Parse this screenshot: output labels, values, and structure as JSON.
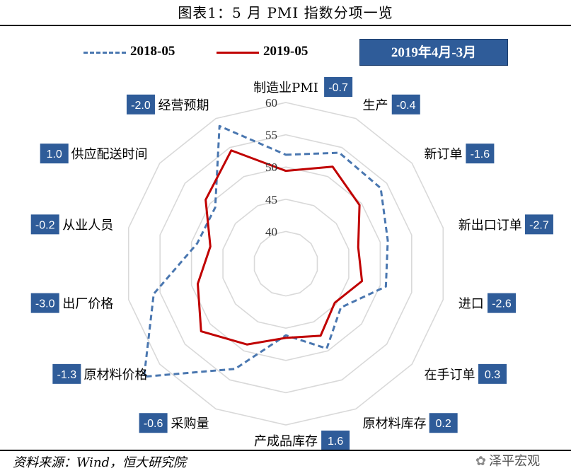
{
  "header": {
    "title": "图表1：5 月 PMI 指数分项一览"
  },
  "legend": {
    "items": [
      "2018-05",
      "2019-05"
    ]
  },
  "period_label": "2019年4月-3月",
  "footer": {
    "source": "资料来源：Wind，恒大研究院",
    "watermark": "泽平宏观"
  },
  "colors": {
    "series_2018": "#4a77b0",
    "series_2019": "#c00000",
    "badge": "#2f5c99",
    "grid": "#d9d9d9"
  },
  "chart_data": {
    "type": "radar",
    "title": "",
    "r_ticks": [
      40,
      45,
      50,
      55,
      60
    ],
    "r_range": [
      35,
      60
    ],
    "categories": [
      "制造业PMI",
      "生产",
      "新订单",
      "新出口订单",
      "进口",
      "在手订单",
      "原材料库存",
      "产成品库存",
      "采购量",
      "原材料价格",
      "出厂价格",
      "从业人员",
      "供应配送时间",
      "经营预期"
    ],
    "badges": [
      "-0.7",
      "-0.4",
      "-1.6",
      "-2.7",
      "-2.6",
      "0.3",
      "0.2",
      "1.6",
      "-0.6",
      "-1.3",
      "-3.0",
      "-0.2",
      "1.0",
      "-2.0"
    ],
    "series": [
      {
        "name": "2018-05",
        "style": "dashed",
        "values": [
          51.9,
          54.1,
          53.8,
          51.2,
          50.9,
          45.9,
          49.6,
          46.1,
          53.1,
          63.1,
          56.0,
          49.1,
          49.0,
          58.7
        ]
      },
      {
        "name": "2019-05",
        "style": "solid",
        "values": [
          49.4,
          51.7,
          49.6,
          46.5,
          47.1,
          44.7,
          47.4,
          46.5,
          48.9,
          51.8,
          49.0,
          47.0,
          50.9,
          54.5
        ]
      }
    ]
  }
}
